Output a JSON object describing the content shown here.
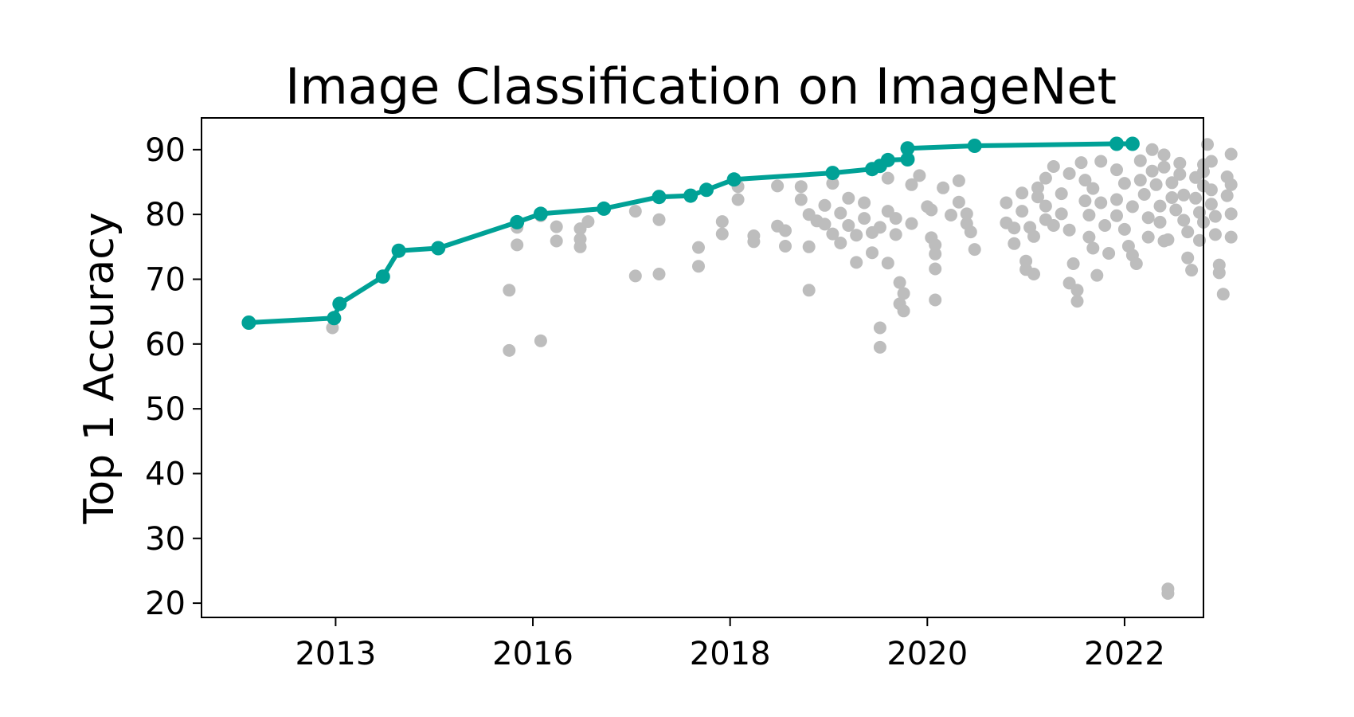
{
  "chart_data": {
    "type": "scatter",
    "title": "Image Classification on ImageNet",
    "xlabel": "",
    "ylabel": "Top 1 Accuracy",
    "xlim": [
      2011.3,
      2024.0
    ],
    "ylim": [
      17.8,
      94.9
    ],
    "x_ticks": [
      {
        "value": 2013.0,
        "label": "2013"
      },
      {
        "value": 2015.5,
        "label": "2016"
      },
      {
        "value": 2018.0,
        "label": "2018"
      },
      {
        "value": 2020.5,
        "label": "2020"
      },
      {
        "value": 2023.0,
        "label": "2022"
      }
    ],
    "y_ticks": [
      20,
      30,
      40,
      50,
      60,
      70,
      80,
      90
    ],
    "grid": false,
    "legend": "none",
    "colors": {
      "sota": "#00a196",
      "other": "#bdbdbd",
      "axes": "#000000"
    },
    "series": [
      {
        "kind": "scatter",
        "points": [
          [
            2012.96,
            62.5
          ],
          [
            2015.2,
            68.3
          ],
          [
            2015.2,
            59.0
          ],
          [
            2015.3,
            75.3
          ],
          [
            2015.3,
            78.0
          ],
          [
            2015.6,
            60.5
          ],
          [
            2015.6,
            79.8
          ],
          [
            2015.8,
            78.1
          ],
          [
            2015.8,
            75.9
          ],
          [
            2016.1,
            77.8
          ],
          [
            2016.1,
            76.2
          ],
          [
            2016.1,
            75.0
          ],
          [
            2016.2,
            78.9
          ],
          [
            2016.8,
            70.5
          ],
          [
            2016.8,
            80.5
          ],
          [
            2017.1,
            70.8
          ],
          [
            2017.1,
            79.2
          ],
          [
            2017.6,
            74.9
          ],
          [
            2017.6,
            72.0
          ],
          [
            2017.9,
            78.9
          ],
          [
            2017.9,
            77.0
          ],
          [
            2018.1,
            82.3
          ],
          [
            2018.1,
            84.3
          ],
          [
            2018.3,
            75.8
          ],
          [
            2018.3,
            76.7
          ],
          [
            2018.6,
            84.4
          ],
          [
            2018.6,
            78.2
          ],
          [
            2018.7,
            77.5
          ],
          [
            2018.7,
            75.1
          ],
          [
            2018.9,
            82.3
          ],
          [
            2018.9,
            84.3
          ],
          [
            2019.0,
            80.0
          ],
          [
            2019.0,
            68.3
          ],
          [
            2019.0,
            75.0
          ],
          [
            2019.1,
            79.0
          ],
          [
            2019.2,
            78.5
          ],
          [
            2019.2,
            81.4
          ],
          [
            2019.3,
            84.8
          ],
          [
            2019.3,
            77.0
          ],
          [
            2019.4,
            80.2
          ],
          [
            2019.4,
            75.6
          ],
          [
            2019.5,
            78.3
          ],
          [
            2019.5,
            82.5
          ],
          [
            2019.6,
            76.8
          ],
          [
            2019.6,
            72.6
          ],
          [
            2019.7,
            79.4
          ],
          [
            2019.7,
            81.8
          ],
          [
            2019.8,
            74.1
          ],
          [
            2019.8,
            77.2
          ],
          [
            2019.9,
            78.0
          ],
          [
            2019.9,
            62.5
          ],
          [
            2019.9,
            59.5
          ],
          [
            2020.0,
            85.6
          ],
          [
            2020.0,
            72.5
          ],
          [
            2020.0,
            80.5
          ],
          [
            2020.1,
            76.9
          ],
          [
            2020.1,
            79.4
          ],
          [
            2020.15,
            69.5
          ],
          [
            2020.15,
            66.2
          ],
          [
            2020.2,
            65.1
          ],
          [
            2020.2,
            67.8
          ],
          [
            2020.3,
            84.6
          ],
          [
            2020.3,
            78.6
          ],
          [
            2020.4,
            86.0
          ],
          [
            2020.5,
            81.2
          ],
          [
            2020.55,
            76.4
          ],
          [
            2020.55,
            80.7
          ],
          [
            2020.6,
            75.3
          ],
          [
            2020.6,
            73.9
          ],
          [
            2020.6,
            71.6
          ],
          [
            2020.6,
            66.8
          ],
          [
            2020.7,
            84.1
          ],
          [
            2020.8,
            79.9
          ],
          [
            2020.9,
            85.2
          ],
          [
            2020.9,
            81.9
          ],
          [
            2021.0,
            80.1
          ],
          [
            2021.0,
            78.6
          ],
          [
            2021.05,
            77.3
          ],
          [
            2021.1,
            74.6
          ],
          [
            2021.5,
            81.8
          ],
          [
            2021.5,
            78.7
          ],
          [
            2021.6,
            77.9
          ],
          [
            2021.6,
            75.5
          ],
          [
            2021.7,
            80.5
          ],
          [
            2021.7,
            83.3
          ],
          [
            2021.75,
            71.5
          ],
          [
            2021.75,
            72.8
          ],
          [
            2021.8,
            78.0
          ],
          [
            2021.85,
            76.6
          ],
          [
            2021.85,
            70.8
          ],
          [
            2021.9,
            82.7
          ],
          [
            2021.9,
            84.1
          ],
          [
            2022.0,
            79.2
          ],
          [
            2022.0,
            85.6
          ],
          [
            2022.0,
            81.3
          ],
          [
            2022.1,
            87.4
          ],
          [
            2022.1,
            78.3
          ],
          [
            2022.2,
            83.2
          ],
          [
            2022.2,
            80.1
          ],
          [
            2022.3,
            77.6
          ],
          [
            2022.3,
            86.3
          ],
          [
            2022.3,
            69.4
          ],
          [
            2022.35,
            72.4
          ],
          [
            2022.4,
            68.3
          ],
          [
            2022.4,
            66.6
          ],
          [
            2022.45,
            88.0
          ],
          [
            2022.5,
            85.3
          ],
          [
            2022.5,
            82.1
          ],
          [
            2022.55,
            79.9
          ],
          [
            2022.55,
            76.5
          ],
          [
            2022.6,
            84.0
          ],
          [
            2022.6,
            74.8
          ],
          [
            2022.65,
            70.6
          ],
          [
            2022.7,
            88.2
          ],
          [
            2022.7,
            81.8
          ],
          [
            2022.75,
            78.3
          ],
          [
            2022.8,
            74.0
          ],
          [
            2022.9,
            86.9
          ],
          [
            2022.9,
            82.3
          ],
          [
            2022.9,
            79.8
          ],
          [
            2023.0,
            84.8
          ],
          [
            2023.0,
            77.7
          ],
          [
            2023.05,
            75.1
          ],
          [
            2023.1,
            73.7
          ],
          [
            2023.1,
            81.2
          ],
          [
            2023.15,
            72.4
          ],
          [
            2023.2,
            88.3
          ],
          [
            2023.2,
            85.3
          ],
          [
            2023.25,
            83.1
          ],
          [
            2023.3,
            79.5
          ],
          [
            2023.3,
            76.5
          ],
          [
            2023.35,
            90.0
          ],
          [
            2023.35,
            86.7
          ],
          [
            2023.4,
            84.6
          ],
          [
            2023.45,
            81.3
          ],
          [
            2023.45,
            78.8
          ],
          [
            2023.5,
            89.2
          ],
          [
            2023.5,
            87.3
          ],
          [
            2023.5,
            75.9
          ],
          [
            2023.55,
            76.1
          ],
          [
            2023.55,
            22.2
          ],
          [
            2023.55,
            21.5
          ],
          [
            2023.6,
            84.9
          ],
          [
            2023.6,
            82.6
          ],
          [
            2023.65,
            80.7
          ],
          [
            2023.7,
            87.9
          ],
          [
            2023.7,
            86.2
          ],
          [
            2023.75,
            83.0
          ],
          [
            2023.75,
            79.1
          ],
          [
            2023.8,
            73.3
          ],
          [
            2023.8,
            77.3
          ],
          [
            2023.85,
            71.4
          ],
          [
            2023.9,
            85.7
          ],
          [
            2023.9,
            82.5
          ],
          [
            2023.95,
            80.3
          ],
          [
            2024.0,
            78.8
          ],
          [
            2023.95,
            76.0
          ],
          [
            2024.0,
            84.4
          ],
          [
            2024.0,
            86.6
          ],
          [
            2024.0,
            87.7
          ],
          [
            2024.05,
            90.8
          ],
          [
            2024.1,
            88.2
          ],
          [
            2024.1,
            83.8
          ],
          [
            2024.1,
            81.6
          ],
          [
            2024.15,
            79.7
          ],
          [
            2024.15,
            76.9
          ],
          [
            2024.2,
            72.2
          ],
          [
            2024.2,
            71.0
          ],
          [
            2024.25,
            67.7
          ],
          [
            2024.3,
            85.8
          ],
          [
            2024.3,
            82.9
          ],
          [
            2024.35,
            89.3
          ],
          [
            2024.35,
            84.6
          ],
          [
            2024.35,
            80.1
          ],
          [
            2024.35,
            76.5
          ]
        ]
      },
      {
        "kind": "line",
        "points": [
          [
            2011.9,
            63.3
          ],
          [
            2012.98,
            64.0
          ],
          [
            2013.05,
            66.2
          ],
          [
            2013.6,
            70.4
          ],
          [
            2013.8,
            74.4
          ],
          [
            2014.3,
            74.8
          ],
          [
            2015.3,
            78.8
          ],
          [
            2015.6,
            80.1
          ],
          [
            2016.4,
            80.9
          ],
          [
            2017.1,
            82.7
          ],
          [
            2017.5,
            82.9
          ],
          [
            2017.7,
            83.8
          ],
          [
            2018.05,
            85.4
          ],
          [
            2019.3,
            86.4
          ],
          [
            2019.8,
            87.0
          ],
          [
            2019.9,
            87.5
          ],
          [
            2020.0,
            88.4
          ],
          [
            2020.25,
            88.5
          ],
          [
            2020.25,
            90.2
          ],
          [
            2021.1,
            90.6
          ],
          [
            2022.9,
            90.9
          ],
          [
            2023.1,
            90.9
          ]
        ]
      }
    ]
  }
}
